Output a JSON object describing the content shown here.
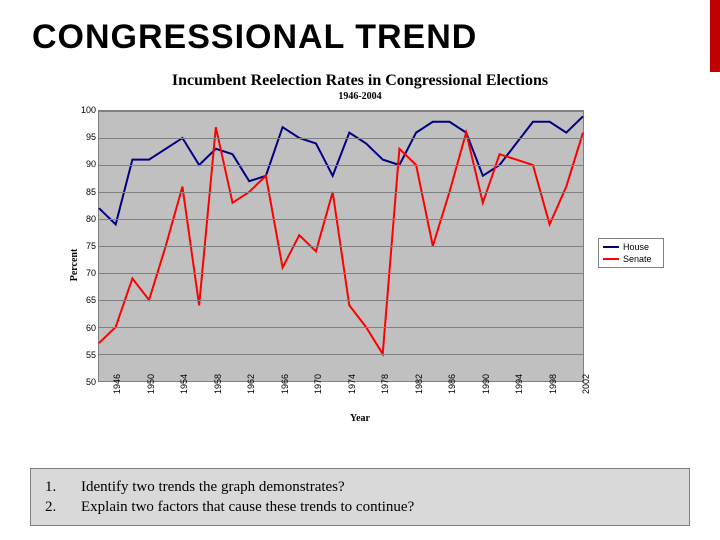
{
  "slide": {
    "title": "CONGRESSIONAL TREND",
    "accent_color": "#c00000"
  },
  "chart": {
    "type": "line",
    "title": "Incumbent Reelection Rates in Congressional Elections",
    "subtitle": "1946-2004",
    "title_fontsize": 16,
    "subtitle_fontsize": 10,
    "xlabel": "Year",
    "ylabel": "Percent",
    "label_fontsize": 10,
    "background_color": "#c0c0c0",
    "grid_color": "#808080",
    "ylim": [
      50,
      100
    ],
    "ytick_step": 5,
    "yticks": [
      50,
      55,
      60,
      65,
      70,
      75,
      80,
      85,
      90,
      95,
      100
    ],
    "xticks": [
      1946,
      1950,
      1954,
      1958,
      1962,
      1966,
      1970,
      1974,
      1978,
      1982,
      1986,
      1990,
      1994,
      1998,
      2002
    ],
    "xlim": [
      1946,
      2004
    ],
    "years": [
      1946,
      1948,
      1950,
      1952,
      1954,
      1956,
      1958,
      1960,
      1962,
      1964,
      1966,
      1968,
      1970,
      1972,
      1974,
      1976,
      1978,
      1980,
      1982,
      1984,
      1986,
      1988,
      1990,
      1992,
      1994,
      1996,
      1998,
      2000,
      2002,
      2004
    ],
    "series": [
      {
        "name": "House",
        "color": "#000080",
        "width": 2,
        "values": [
          82,
          79,
          91,
          91,
          93,
          95,
          90,
          93,
          92,
          87,
          88,
          97,
          95,
          94,
          88,
          96,
          94,
          91,
          90,
          96,
          98,
          98,
          96,
          88,
          90,
          94,
          98,
          98,
          96,
          99
        ]
      },
      {
        "name": "Senate",
        "color": "#ff0000",
        "width": 2,
        "values": [
          57,
          60,
          69,
          65,
          75,
          86,
          64,
          97,
          83,
          85,
          88,
          71,
          77,
          74,
          85,
          64,
          60,
          55,
          93,
          90,
          75,
          85,
          96,
          83,
          92,
          91,
          90,
          79,
          86,
          96
        ]
      }
    ],
    "legend": {
      "position": "right",
      "items": [
        "House",
        "Senate"
      ]
    }
  },
  "questions": {
    "items": [
      {
        "num": "1.",
        "text": "Identify two trends the graph demonstrates?"
      },
      {
        "num": "2.",
        "text": "Explain two factors that cause these trends to continue?"
      }
    ]
  }
}
